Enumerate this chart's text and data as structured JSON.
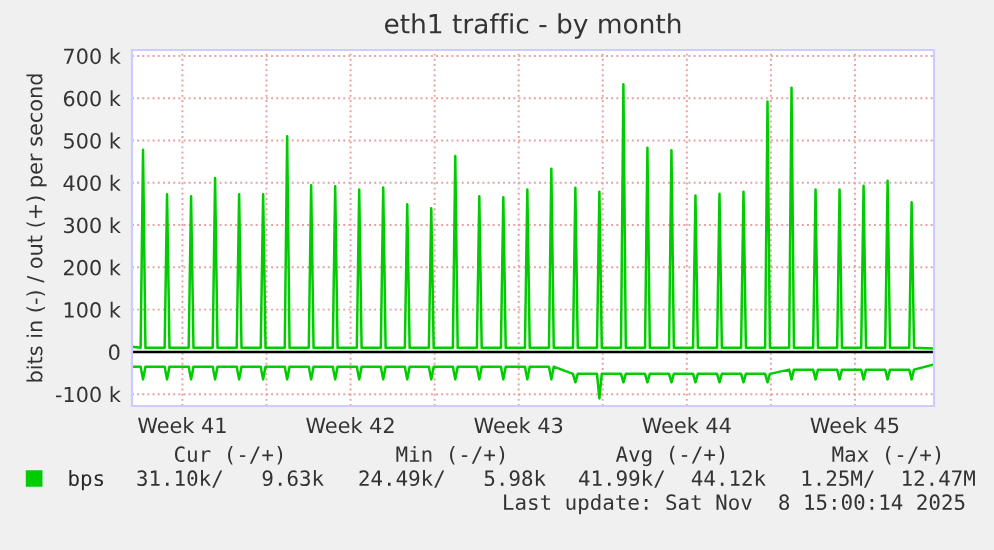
{
  "chart_data": {
    "type": "line",
    "title": "eth1 traffic - by month",
    "ylabel": "bits in (-) / out (+) per second",
    "x": [
      "2025-10-06T05:36",
      "2025-10-06T14:14",
      "2025-10-06T16:38",
      "2025-10-06T19:02",
      "2025-10-07T14:14",
      "2025-10-07T16:38",
      "2025-10-07T19:02",
      "2025-10-08T14:14",
      "2025-10-08T16:38",
      "2025-10-08T19:02",
      "2025-10-09T14:14",
      "2025-10-09T16:38",
      "2025-10-09T19:02",
      "2025-10-10T14:14",
      "2025-10-10T16:38",
      "2025-10-10T19:02",
      "2025-10-11T14:14",
      "2025-10-11T16:38",
      "2025-10-11T19:02",
      "2025-10-12T14:14",
      "2025-10-12T16:38",
      "2025-10-12T19:02",
      "2025-10-13T14:14",
      "2025-10-13T16:38",
      "2025-10-13T19:02",
      "2025-10-14T14:14",
      "2025-10-14T16:38",
      "2025-10-14T19:02",
      "2025-10-15T14:14",
      "2025-10-15T16:38",
      "2025-10-15T19:02",
      "2025-10-16T14:14",
      "2025-10-16T16:38",
      "2025-10-16T19:02",
      "2025-10-17T14:14",
      "2025-10-17T16:38",
      "2025-10-17T19:02",
      "2025-10-18T14:14",
      "2025-10-18T16:38",
      "2025-10-18T19:02",
      "2025-10-19T14:14",
      "2025-10-19T16:38",
      "2025-10-19T19:02",
      "2025-10-20T14:14",
      "2025-10-20T16:38",
      "2025-10-20T19:02",
      "2025-10-21T14:14",
      "2025-10-21T16:38",
      "2025-10-21T19:02",
      "2025-10-22T14:14",
      "2025-10-22T16:38",
      "2025-10-22T19:02",
      "2025-10-23T14:14",
      "2025-10-23T16:38",
      "2025-10-23T19:02",
      "2025-10-24T14:14",
      "2025-10-24T16:38",
      "2025-10-24T19:02",
      "2025-10-25T14:14",
      "2025-10-25T16:38",
      "2025-10-25T19:02",
      "2025-10-26T14:14",
      "2025-10-26T16:38",
      "2025-10-26T19:02",
      "2025-10-27T14:14",
      "2025-10-27T16:38",
      "2025-10-27T19:02",
      "2025-10-28T14:14",
      "2025-10-28T16:38",
      "2025-10-28T19:02",
      "2025-10-29T14:14",
      "2025-10-29T16:38",
      "2025-10-29T19:02",
      "2025-10-30T14:14",
      "2025-10-30T16:38",
      "2025-10-30T19:02",
      "2025-10-31T14:14",
      "2025-10-31T16:38",
      "2025-10-31T19:02",
      "2025-11-01T14:14",
      "2025-11-01T16:38",
      "2025-11-01T19:02",
      "2025-11-02T14:14",
      "2025-11-02T16:38",
      "2025-11-02T19:02",
      "2025-11-03T14:14",
      "2025-11-03T16:38",
      "2025-11-03T19:02",
      "2025-11-04T14:14",
      "2025-11-04T16:38",
      "2025-11-04T19:02",
      "2025-11-05T14:14",
      "2025-11-05T16:38",
      "2025-11-05T19:02",
      "2025-11-06T14:14",
      "2025-11-06T16:38",
      "2025-11-06T19:02",
      "2025-11-07T14:14",
      "2025-11-07T16:38",
      "2025-11-07T19:02",
      "2025-11-08T15:00"
    ],
    "series": [
      {
        "name": "bps",
        "color": "#00cc00",
        "values": [
          12,
          10,
          478,
          10,
          10,
          373,
          10,
          10,
          368,
          10,
          10,
          411,
          10,
          10,
          373,
          10,
          10,
          373,
          10,
          10,
          510,
          10,
          10,
          394,
          10,
          10,
          392,
          10,
          10,
          384,
          10,
          10,
          389,
          10,
          10,
          349,
          10,
          10,
          340,
          10,
          10,
          463,
          10,
          10,
          368,
          10,
          10,
          366,
          10,
          10,
          384,
          10,
          10,
          433,
          10,
          10,
          388,
          10,
          10,
          379,
          10,
          10,
          633,
          10,
          10,
          483,
          10,
          10,
          477,
          10,
          10,
          370,
          10,
          10,
          374,
          10,
          10,
          379,
          10,
          10,
          592,
          10,
          10,
          625,
          10,
          10,
          384,
          10,
          10,
          384,
          10,
          10,
          393,
          10,
          10,
          405,
          10,
          10,
          354,
          10,
          8
        ]
      },
      {
        "color": "#00cc00",
        "values": [
          -35,
          -35,
          -65,
          -35,
          -35,
          -65,
          -35,
          -35,
          -65,
          -35,
          -35,
          -65,
          -35,
          -35,
          -65,
          -35,
          -35,
          -65,
          -35,
          -35,
          -65,
          -35,
          -35,
          -65,
          -35,
          -35,
          -65,
          -35,
          -35,
          -65,
          -35,
          -35,
          -65,
          -35,
          -35,
          -65,
          -35,
          -35,
          -65,
          -35,
          -35,
          -65,
          -35,
          -35,
          -65,
          -35,
          -35,
          -65,
          -35,
          -35,
          -65,
          -35,
          -35,
          -65,
          -35,
          -52,
          -72,
          -52,
          -52,
          -110,
          -52,
          -52,
          -72,
          -52,
          -52,
          -72,
          -52,
          -52,
          -72,
          -52,
          -52,
          -72,
          -52,
          -52,
          -72,
          -52,
          -52,
          -72,
          -52,
          -52,
          -72,
          -52,
          -42,
          -65,
          -42,
          -42,
          -65,
          -42,
          -42,
          -65,
          -42,
          -42,
          -65,
          -42,
          -42,
          -65,
          -42,
          -42,
          -65,
          -42,
          -30
        ]
      }
    ],
    "xlim": [
      "2025-10-06T05:36",
      "2025-11-08T15:00"
    ],
    "xticks": [
      {
        "value": "2025-10-08T08:00",
        "label": "Week 41"
      },
      {
        "value": "2025-10-11T20:00",
        "label": null
      },
      {
        "value": "2025-10-15T08:00",
        "label": "Week 42"
      },
      {
        "value": "2025-10-18T20:00",
        "label": null
      },
      {
        "value": "2025-10-22T08:00",
        "label": "Week 43"
      },
      {
        "value": "2025-10-25T20:00",
        "label": null
      },
      {
        "value": "2025-10-29T08:00",
        "label": "Week 44"
      },
      {
        "value": "2025-11-01T20:00",
        "label": null
      },
      {
        "value": "2025-11-05T08:00",
        "label": "Week 45"
      }
    ],
    "ylim": [
      -128,
      714
    ],
    "yticks": [
      {
        "value": -100,
        "label": "-100 k"
      },
      0,
      {
        "value": 100,
        "label": "100 k"
      },
      {
        "value": 200,
        "label": "200 k"
      },
      {
        "value": 300,
        "label": "300 k"
      },
      {
        "value": 400,
        "label": "400 k"
      },
      {
        "value": 500,
        "label": "500 k"
      },
      {
        "value": 600,
        "label": "600 k"
      },
      {
        "value": 700,
        "label": "700 k"
      }
    ],
    "ref_lines": [
      {
        "axis": "y",
        "value": 0,
        "color": "#000000"
      }
    ],
    "grid": true,
    "legend": "bottom left",
    "annotations": [
      "Cur (-/+)",
      "Min (-/+)",
      "Avg (-/+)",
      "Max (-/+)",
      "31.10k/   9.63k",
      "24.49k/   5.98k",
      "41.99k/  44.12k",
      "1.25M/  12.47M",
      "Last update: Sat Nov  8 15:00:14 2025"
    ]
  }
}
